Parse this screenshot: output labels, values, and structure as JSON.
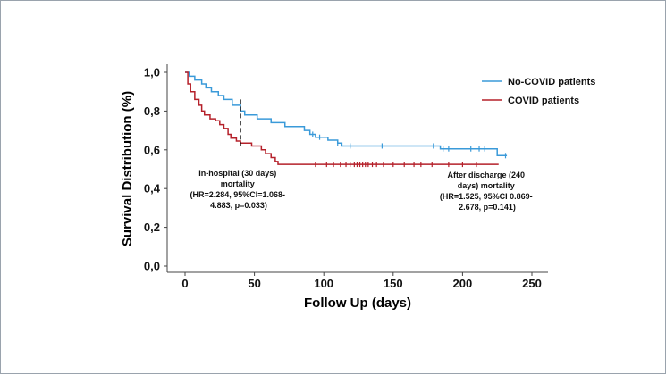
{
  "chart_data": {
    "type": "line",
    "subtype": "kaplan-meier",
    "xlabel": "Follow Up (days)",
    "ylabel": "Survival Distribution (%)",
    "xlim": [
      0,
      250
    ],
    "ylim": [
      0,
      1
    ],
    "x_ticks": [
      0,
      50,
      100,
      150,
      200,
      250
    ],
    "x_tick_labels": [
      "0",
      "50",
      "100",
      "150",
      "200",
      "250"
    ],
    "y_ticks": [
      0,
      0.2,
      0.4,
      0.6,
      0.8,
      1.0
    ],
    "y_tick_labels": [
      "0,0",
      "0,2",
      "0,4",
      "0,6",
      "0,8",
      "1,0"
    ],
    "grid": false,
    "legend_position": "top-right",
    "series": [
      {
        "name": "No-COVID patients",
        "color": "#3a9ad9",
        "steps": [
          [
            0,
            1.0
          ],
          [
            3,
            0.98
          ],
          [
            7,
            0.96
          ],
          [
            12,
            0.94
          ],
          [
            15,
            0.92
          ],
          [
            19,
            0.9
          ],
          [
            24,
            0.88
          ],
          [
            28,
            0.86
          ],
          [
            34,
            0.83
          ],
          [
            40,
            0.8
          ],
          [
            43,
            0.78
          ],
          [
            52,
            0.76
          ],
          [
            62,
            0.74
          ],
          [
            72,
            0.72
          ],
          [
            86,
            0.7
          ],
          [
            90,
            0.68
          ],
          [
            94,
            0.665
          ],
          [
            103,
            0.65
          ],
          [
            110,
            0.635
          ],
          [
            113,
            0.62
          ],
          [
            184,
            0.605
          ],
          [
            225,
            0.57
          ],
          [
            232,
            0.57
          ]
        ],
        "censor_times": [
          92,
          97,
          110,
          119,
          142,
          179,
          186,
          190,
          206,
          212,
          216,
          231
        ]
      },
      {
        "name": "COVID patients",
        "color": "#b5202a",
        "steps": [
          [
            0,
            1.0
          ],
          [
            2,
            0.94
          ],
          [
            4,
            0.9
          ],
          [
            7,
            0.86
          ],
          [
            10,
            0.83
          ],
          [
            12,
            0.8
          ],
          [
            14,
            0.78
          ],
          [
            18,
            0.76
          ],
          [
            22,
            0.75
          ],
          [
            25,
            0.73
          ],
          [
            28,
            0.71
          ],
          [
            31,
            0.68
          ],
          [
            33,
            0.66
          ],
          [
            37,
            0.645
          ],
          [
            40,
            0.635
          ],
          [
            48,
            0.62
          ],
          [
            55,
            0.6
          ],
          [
            58,
            0.58
          ],
          [
            62,
            0.56
          ],
          [
            65,
            0.54
          ],
          [
            67,
            0.525
          ],
          [
            226,
            0.525
          ]
        ],
        "censor_times": [
          94,
          102,
          107,
          112,
          116,
          119,
          122,
          124,
          126,
          128,
          130,
          132,
          135,
          138,
          143,
          150,
          158,
          165,
          170,
          178,
          190,
          200,
          210
        ]
      }
    ],
    "marker_line": {
      "x": 40,
      "y_from": 0.62,
      "y_to": 0.86
    },
    "annotations": [
      {
        "id": "in-hospital",
        "lines": [
          "In-hospital (30 days)",
          "mortality",
          "(HR=2.284, 95%CI=1.068-",
          "4.883, p=0.033)"
        ]
      },
      {
        "id": "after-discharge",
        "lines": [
          "After discharge (240",
          "days) mortality",
          "(HR=1.525, 95%CI 0.869-",
          "2.678, p=0.141)"
        ]
      }
    ]
  }
}
